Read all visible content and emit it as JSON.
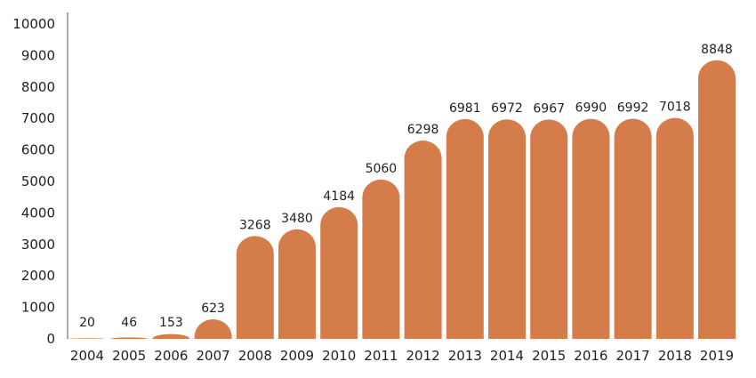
{
  "chart_data": {
    "type": "bar",
    "title": "",
    "xlabel": "",
    "ylabel": "",
    "categories": [
      "2004",
      "2005",
      "2006",
      "2007",
      "2008",
      "2009",
      "2010",
      "2011",
      "2012",
      "2013",
      "2014",
      "2015",
      "2016",
      "2017",
      "2018",
      "2019"
    ],
    "values": [
      20,
      46,
      153,
      623,
      3268,
      3480,
      4184,
      5060,
      6298,
      6981,
      6972,
      6967,
      6990,
      6992,
      7018,
      8848
    ],
    "ylim": [
      0,
      10000
    ],
    "yticks": [
      "0",
      "1000",
      "2000",
      "3000",
      "4000",
      "5000",
      "6000",
      "7000",
      "8000",
      "9000",
      "10000"
    ],
    "grid": false,
    "legend": "none",
    "bar_color": "#D47C4A",
    "bar_shape": "rounded-top"
  }
}
